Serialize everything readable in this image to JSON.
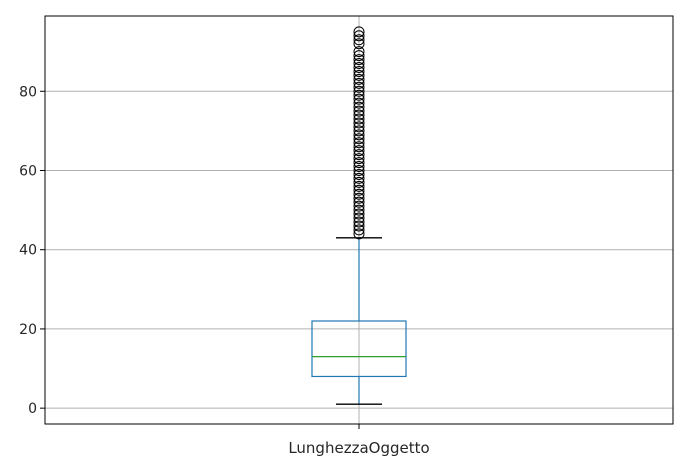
{
  "chart_data": {
    "type": "box",
    "title": "",
    "xlabel": "",
    "ylabel": "",
    "categories": [
      "LunghezzaOggetto"
    ],
    "boxes": [
      {
        "name": "LunghezzaOggetto",
        "whisker_low": 1,
        "q1": 8,
        "median": 13,
        "q3": 22,
        "whisker_high": 43,
        "outliers": [
          44,
          45,
          46,
          47,
          48,
          49,
          50,
          51,
          52,
          53,
          54,
          55,
          56,
          57,
          58,
          59,
          60,
          61,
          62,
          63,
          64,
          65,
          66,
          67,
          68,
          69,
          70,
          71,
          72,
          73,
          74,
          75,
          76,
          77,
          78,
          79,
          80,
          81,
          82,
          83,
          84,
          85,
          86,
          87,
          88,
          89,
          90,
          92,
          93,
          94,
          95
        ]
      }
    ],
    "ylim": [
      -4,
      99
    ],
    "yticks": [
      0,
      20,
      40,
      60,
      80
    ],
    "ytick_labels": [
      "0",
      "20",
      "40",
      "60",
      "80"
    ],
    "grid": true,
    "colors": {
      "box": "#1f77b4",
      "median": "#2ca02c",
      "whisker_cap": "#000000",
      "outlier": "#000000",
      "grid": "#b0b0b0",
      "axes": "#000000"
    }
  }
}
